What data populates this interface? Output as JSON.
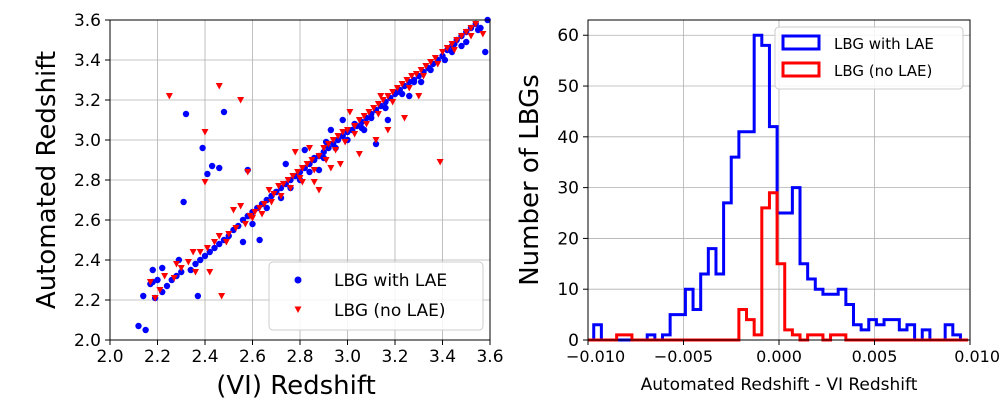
{
  "chart_data": [
    {
      "type": "scatter",
      "xlabel": "(VI) Redshift",
      "ylabel": "Automated Redshift",
      "xlim": [
        2.0,
        3.6
      ],
      "ylim": [
        2.0,
        3.6
      ],
      "xticks": [
        "2.0",
        "2.2",
        "2.4",
        "2.6",
        "2.8",
        "3.0",
        "3.2",
        "3.4",
        "3.6"
      ],
      "yticks": [
        "2.0",
        "2.2",
        "2.4",
        "2.6",
        "2.8",
        "3.0",
        "3.2",
        "3.4",
        "3.6"
      ],
      "grid": true,
      "legend_position": "lower-right",
      "series": [
        {
          "name": "LBG with LAE",
          "color": "#0000ff",
          "marker": "circle",
          "points": [
            [
              2.12,
              2.07
            ],
            [
              2.14,
              2.22
            ],
            [
              2.15,
              2.05
            ],
            [
              2.17,
              2.28
            ],
            [
              2.18,
              2.35
            ],
            [
              2.19,
              2.21
            ],
            [
              2.2,
              2.3
            ],
            [
              2.22,
              2.24
            ],
            [
              2.24,
              2.27
            ],
            [
              2.26,
              2.3
            ],
            [
              2.28,
              2.32
            ],
            [
              2.3,
              2.34
            ],
            [
              2.31,
              2.69
            ],
            [
              2.32,
              3.13
            ],
            [
              2.34,
              2.35
            ],
            [
              2.36,
              2.38
            ],
            [
              2.38,
              2.4
            ],
            [
              2.39,
              2.96
            ],
            [
              2.4,
              2.42
            ],
            [
              2.42,
              2.44
            ],
            [
              2.43,
              2.87
            ],
            [
              2.44,
              2.46
            ],
            [
              2.46,
              2.48
            ],
            [
              2.48,
              2.5
            ],
            [
              2.5,
              2.52
            ],
            [
              2.52,
              2.55
            ],
            [
              2.54,
              2.57
            ],
            [
              2.56,
              2.6
            ],
            [
              2.58,
              2.62
            ],
            [
              2.6,
              2.64
            ],
            [
              2.62,
              2.66
            ],
            [
              2.64,
              2.68
            ],
            [
              2.66,
              2.7
            ],
            [
              2.68,
              2.72
            ],
            [
              2.7,
              2.74
            ],
            [
              2.72,
              2.76
            ],
            [
              2.74,
              2.78
            ],
            [
              2.76,
              2.8
            ],
            [
              2.78,
              2.82
            ],
            [
              2.8,
              2.84
            ],
            [
              2.82,
              2.86
            ],
            [
              2.84,
              2.88
            ],
            [
              2.86,
              2.9
            ],
            [
              2.88,
              2.92
            ],
            [
              2.9,
              2.94
            ],
            [
              2.92,
              2.96
            ],
            [
              2.94,
              2.98
            ],
            [
              2.96,
              3.0
            ],
            [
              2.98,
              3.02
            ],
            [
              3.0,
              3.04
            ],
            [
              3.02,
              3.05
            ],
            [
              3.04,
              3.07
            ],
            [
              3.06,
              3.09
            ],
            [
              3.08,
              3.11
            ],
            [
              3.1,
              3.13
            ],
            [
              3.12,
              3.15
            ],
            [
              3.14,
              3.17
            ],
            [
              3.16,
              3.19
            ],
            [
              3.18,
              3.21
            ],
            [
              3.2,
              3.23
            ],
            [
              3.22,
              3.25
            ],
            [
              3.24,
              3.27
            ],
            [
              3.26,
              3.29
            ],
            [
              3.28,
              3.3
            ],
            [
              3.3,
              3.32
            ],
            [
              3.32,
              3.34
            ],
            [
              3.34,
              3.36
            ],
            [
              3.36,
              3.38
            ],
            [
              3.38,
              3.4
            ],
            [
              3.4,
              3.42
            ],
            [
              3.42,
              3.45
            ],
            [
              3.44,
              3.47
            ],
            [
              3.46,
              3.5
            ],
            [
              3.48,
              3.52
            ],
            [
              3.5,
              3.54
            ],
            [
              3.52,
              3.56
            ],
            [
              3.54,
              3.58
            ],
            [
              3.56,
              3.56
            ],
            [
              3.58,
              3.44
            ],
            [
              3.59,
              3.6
            ],
            [
              2.48,
              3.14
            ],
            [
              2.56,
              2.49
            ],
            [
              2.63,
              2.5
            ],
            [
              2.46,
              2.86
            ],
            [
              2.41,
              2.83
            ],
            [
              2.37,
              2.22
            ],
            [
              2.29,
              2.4
            ],
            [
              2.22,
              2.36
            ],
            [
              2.18,
              2.29
            ],
            [
              2.58,
              2.85
            ],
            [
              2.7,
              2.74
            ],
            [
              2.74,
              2.88
            ],
            [
              2.82,
              2.95
            ],
            [
              2.86,
              2.91
            ],
            [
              2.88,
              2.85
            ],
            [
              2.91,
              2.99
            ],
            [
              2.93,
              3.05
            ],
            [
              2.98,
              3.1
            ],
            [
              3.03,
              3.08
            ],
            [
              3.07,
              3.05
            ],
            [
              3.12,
              2.98
            ],
            [
              3.17,
              3.1
            ],
            [
              3.21,
              3.24
            ],
            [
              3.26,
              3.22
            ],
            [
              3.31,
              3.29
            ],
            [
              3.41,
              3.4
            ],
            [
              3.45,
              3.48
            ],
            [
              3.5,
              3.49
            ],
            [
              3.55,
              3.55
            ],
            [
              2.6,
              2.58
            ],
            [
              2.66,
              2.66
            ],
            [
              2.72,
              2.71
            ],
            [
              2.76,
              2.76
            ],
            [
              2.8,
              2.8
            ],
            [
              2.84,
              2.84
            ],
            [
              2.9,
              2.91
            ],
            [
              2.95,
              2.96
            ],
            [
              3.0,
              3.0
            ],
            [
              3.06,
              3.06
            ],
            [
              3.1,
              3.11
            ],
            [
              3.16,
              3.16
            ],
            [
              3.23,
              3.23
            ],
            [
              3.28,
              3.29
            ],
            [
              3.35,
              3.35
            ],
            [
              3.44,
              3.44
            ],
            [
              3.48,
              3.47
            ]
          ]
        },
        {
          "name": "LBG (no LAE)",
          "color": "#ff0000",
          "marker": "triangle-down",
          "points": [
            [
              2.17,
              2.29
            ],
            [
              2.19,
              2.21
            ],
            [
              2.21,
              2.25
            ],
            [
              2.23,
              2.32
            ],
            [
              2.25,
              3.22
            ],
            [
              2.27,
              2.31
            ],
            [
              2.28,
              2.38
            ],
            [
              2.3,
              2.36
            ],
            [
              2.33,
              2.39
            ],
            [
              2.35,
              2.44
            ],
            [
              2.36,
              2.34
            ],
            [
              2.38,
              2.44
            ],
            [
              2.4,
              3.04
            ],
            [
              2.4,
              2.79
            ],
            [
              2.41,
              2.46
            ],
            [
              2.42,
              2.34
            ],
            [
              2.44,
              2.49
            ],
            [
              2.46,
              2.52
            ],
            [
              2.46,
              3.27
            ],
            [
              2.47,
              2.22
            ],
            [
              2.49,
              2.49
            ],
            [
              2.5,
              2.53
            ],
            [
              2.52,
              2.65
            ],
            [
              2.53,
              2.56
            ],
            [
              2.55,
              3.2
            ],
            [
              2.55,
              2.67
            ],
            [
              2.57,
              2.58
            ],
            [
              2.58,
              2.84
            ],
            [
              2.59,
              2.62
            ],
            [
              2.61,
              2.64
            ],
            [
              2.63,
              2.66
            ],
            [
              2.65,
              2.68
            ],
            [
              2.67,
              2.75
            ],
            [
              2.69,
              2.73
            ],
            [
              2.71,
              2.77
            ],
            [
              2.73,
              2.78
            ],
            [
              2.75,
              2.8
            ],
            [
              2.77,
              2.82
            ],
            [
              2.78,
              2.94
            ],
            [
              2.79,
              2.84
            ],
            [
              2.81,
              2.86
            ],
            [
              2.83,
              2.88
            ],
            [
              2.84,
              2.96
            ],
            [
              2.85,
              2.9
            ],
            [
              2.86,
              2.79
            ],
            [
              2.88,
              2.92
            ],
            [
              2.9,
              2.96
            ],
            [
              2.92,
              2.98
            ],
            [
              2.93,
              2.86
            ],
            [
              2.94,
              3.0
            ],
            [
              2.96,
              3.02
            ],
            [
              2.98,
              3.04
            ],
            [
              3.0,
              3.05
            ],
            [
              3.01,
              3.14
            ],
            [
              3.03,
              3.07
            ],
            [
              3.05,
              3.1
            ],
            [
              3.07,
              3.12
            ],
            [
              3.09,
              3.14
            ],
            [
              3.11,
              3.16
            ],
            [
              3.12,
              3.0
            ],
            [
              3.13,
              3.18
            ],
            [
              3.15,
              3.2
            ],
            [
              3.17,
              3.05
            ],
            [
              3.17,
              3.22
            ],
            [
              3.19,
              3.24
            ],
            [
              3.21,
              3.26
            ],
            [
              3.23,
              3.28
            ],
            [
              3.24,
              3.11
            ],
            [
              3.25,
              3.3
            ],
            [
              3.27,
              3.32
            ],
            [
              3.29,
              3.33
            ],
            [
              3.3,
              3.22
            ],
            [
              3.31,
              3.35
            ],
            [
              3.33,
              3.37
            ],
            [
              3.35,
              3.39
            ],
            [
              3.37,
              3.41
            ],
            [
              3.39,
              2.89
            ],
            [
              3.4,
              3.44
            ],
            [
              3.42,
              3.46
            ],
            [
              3.44,
              3.48
            ],
            [
              3.46,
              3.5
            ],
            [
              3.48,
              3.52
            ],
            [
              3.5,
              3.54
            ],
            [
              3.52,
              3.56
            ],
            [
              3.54,
              3.58
            ],
            [
              3.57,
              3.53
            ],
            [
              2.88,
              2.75
            ],
            [
              2.97,
              2.88
            ],
            [
              3.05,
              2.93
            ],
            [
              3.14,
              3.22
            ],
            [
              2.81,
              2.79
            ],
            [
              2.86,
              2.85
            ],
            [
              2.91,
              2.9
            ],
            [
              2.95,
              2.95
            ],
            [
              2.99,
              2.99
            ],
            [
              3.03,
              3.03
            ],
            [
              3.08,
              3.08
            ],
            [
              3.13,
              3.13
            ],
            [
              3.19,
              3.19
            ],
            [
              3.26,
              3.26
            ],
            [
              3.32,
              3.32
            ],
            [
              3.38,
              3.38
            ],
            [
              3.45,
              3.45
            ],
            [
              3.52,
              3.52
            ],
            [
              2.6,
              2.61
            ],
            [
              2.64,
              2.63
            ],
            [
              2.68,
              2.69
            ],
            [
              2.72,
              2.72
            ],
            [
              2.76,
              2.76
            ],
            [
              2.8,
              2.81
            ]
          ]
        }
      ]
    },
    {
      "type": "histogram-step",
      "xlabel": "Automated Redshift - VI Redshift",
      "ylabel": "Number of LBGs",
      "xlim": [
        -0.01,
        0.01
      ],
      "ylim": [
        0,
        63
      ],
      "xticks": [
        "−0.010",
        "−0.005",
        "0.000",
        "0.005",
        "0.010"
      ],
      "yticks": [
        "0",
        "10",
        "20",
        "30",
        "40",
        "50",
        "60"
      ],
      "grid": true,
      "legend_position": "top-right",
      "bin_width": 0.0004,
      "bin_start": -0.0101,
      "series": [
        {
          "name": "LBG with LAE",
          "color": "#0000ff",
          "counts": [
            0,
            3,
            0,
            0,
            0,
            0,
            0,
            0,
            1,
            0,
            1,
            5,
            5,
            10,
            6,
            13,
            18,
            13,
            27,
            36,
            41,
            41,
            60,
            58,
            42,
            25,
            25,
            30,
            15,
            12,
            10,
            9,
            9,
            10,
            7,
            3,
            2,
            4,
            3,
            4,
            4,
            2,
            3,
            0,
            2,
            0,
            0,
            3,
            1,
            0
          ]
        },
        {
          "name": "LBG (no LAE)",
          "color": "#ff0000",
          "counts": [
            0,
            0,
            0,
            0,
            1,
            1,
            0,
            0,
            0,
            0,
            0,
            0,
            0,
            0,
            0,
            0,
            0,
            0,
            0,
            0,
            6,
            4,
            1,
            26,
            29,
            15,
            2,
            1,
            0,
            1,
            1,
            0,
            1,
            1,
            0,
            0,
            0,
            0,
            0,
            0,
            0,
            0,
            0,
            0,
            0,
            0,
            0,
            0,
            0,
            0
          ]
        }
      ]
    }
  ]
}
